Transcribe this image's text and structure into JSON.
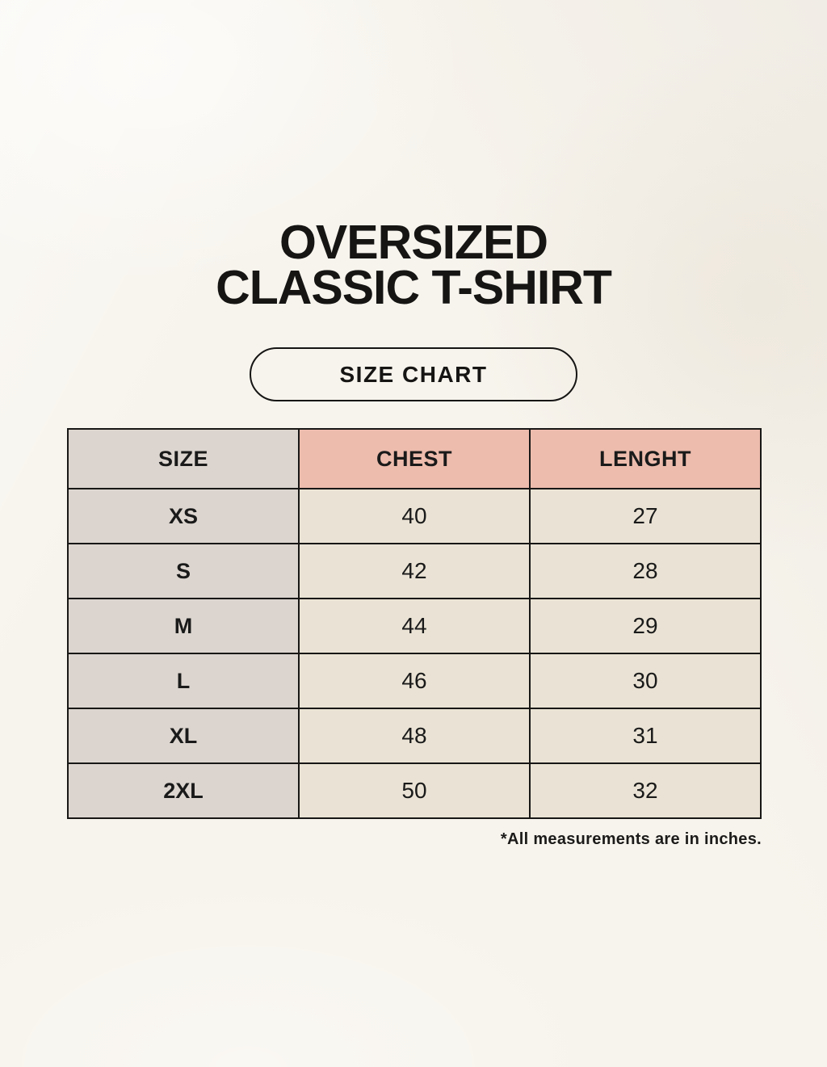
{
  "header": {
    "title_line1": "OVERSIZED",
    "title_line2": "CLASSIC T-SHIRT",
    "badge_label": "SIZE CHART"
  },
  "chart_data": {
    "type": "table",
    "title": "OVERSIZED CLASSIC T-SHIRT",
    "columns": [
      "SIZE",
      "CHEST",
      "LENGHT"
    ],
    "rows": [
      [
        "XS",
        40,
        27
      ],
      [
        "S",
        42,
        28
      ],
      [
        "M",
        44,
        29
      ],
      [
        "L",
        46,
        30
      ],
      [
        "XL",
        48,
        31
      ],
      [
        "2XL",
        50,
        32
      ]
    ],
    "note": "*All measurements are in inches.",
    "units": "inches"
  },
  "colors": {
    "background": "#f7f4ed",
    "header_pink": "#edbcad",
    "column_gray": "#dcd5cf",
    "cell_cream": "#eae3d5",
    "border": "#181716",
    "text": "#1a1a1a"
  }
}
